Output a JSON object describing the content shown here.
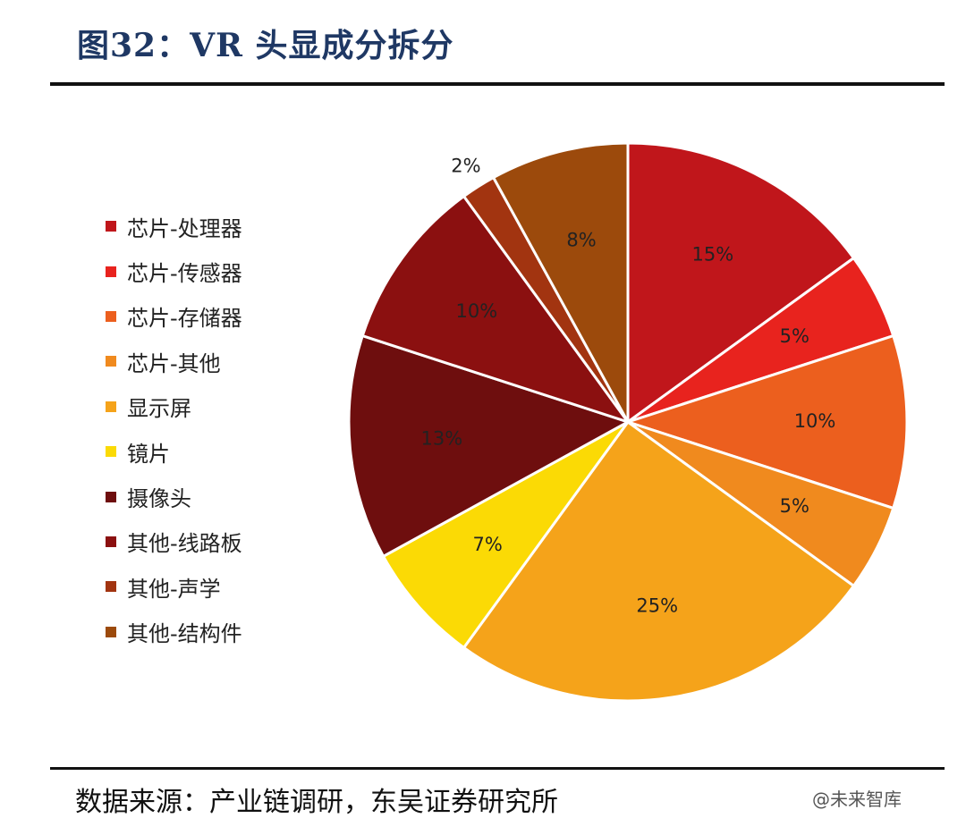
{
  "title": "图32：VR 头显成分拆分",
  "source": "数据来源：产业链调研，东吴证券研究所",
  "watermark": "@未来智库",
  "chart_data": {
    "type": "pie",
    "title": "图32：VR 头显成分拆分",
    "categories": [
      "芯片-处理器",
      "芯片-传感器",
      "芯片-存储器",
      "芯片-其他",
      "显示屏",
      "镜片",
      "摄像头",
      "其他-线路板",
      "其他-声学",
      "其他-结构件"
    ],
    "values": [
      15,
      5,
      10,
      5,
      25,
      7,
      13,
      10,
      2,
      8
    ],
    "labels": [
      "15%",
      "5%",
      "10%",
      "5%",
      "25%",
      "7%",
      "13%",
      "10%",
      "2%",
      "8%"
    ],
    "colors": [
      "#C0161B",
      "#E8231E",
      "#EC5F1E",
      "#F08A1E",
      "#F5A31A",
      "#FBDA05",
      "#6E0E0E",
      "#8B1010",
      "#A23410",
      "#9C4A0C"
    ],
    "legend_position": "left",
    "start_angle": "12 o'clock, clockwise"
  }
}
